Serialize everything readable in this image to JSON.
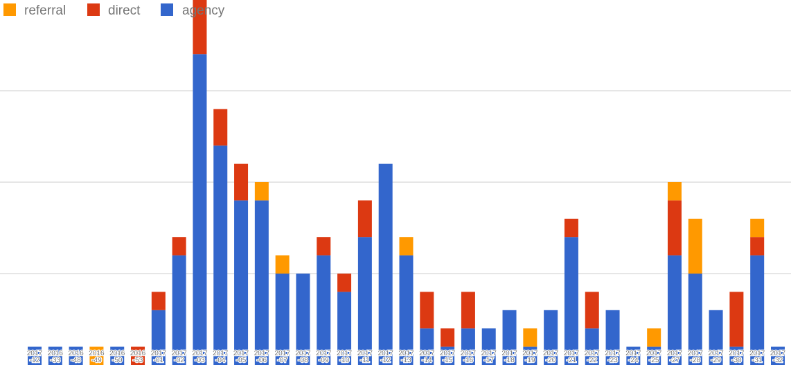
{
  "chart_data": {
    "type": "bar",
    "stacked": true,
    "title": "",
    "xlabel": "",
    "ylabel": "",
    "ylim": [
      0,
      20
    ],
    "grid": true,
    "legend_position": "top-left",
    "categories": [
      "2017-12",
      "2016-33",
      "2016-48",
      "2016-49",
      "2016-50",
      "2016-53",
      "2017-01",
      "2017-02",
      "2017-03",
      "2017-04",
      "2017-05",
      "2017-06",
      "2017-07",
      "2017-08",
      "2017-09",
      "2017-10",
      "2017-11",
      "2017-12",
      "2017-13",
      "2017-14",
      "2017-15",
      "2017-16",
      "2017-17",
      "2017-18",
      "2017-19",
      "2017-20",
      "2017-21",
      "2017-22",
      "2017-23",
      "2017-24",
      "2017-25",
      "2017-27",
      "2017-28",
      "2017-29",
      "2017-30",
      "2017-31",
      "2017-32"
    ],
    "series": [
      {
        "name": "agency",
        "color": "#3366cc",
        "values": [
          1,
          1,
          1,
          0,
          1,
          0,
          3,
          6,
          17,
          12,
          9,
          9,
          5,
          5,
          6,
          4,
          7,
          11,
          6,
          2,
          1,
          2,
          2,
          3,
          1,
          3,
          7,
          2,
          3,
          1,
          1,
          6,
          5,
          3,
          1,
          6,
          1
        ]
      },
      {
        "name": "direct",
        "color": "#dc3912",
        "values": [
          0,
          0,
          0,
          0,
          0,
          1,
          1,
          1,
          3,
          2,
          2,
          0,
          0,
          0,
          1,
          1,
          2,
          0,
          0,
          2,
          1,
          2,
          0,
          0,
          0,
          0,
          1,
          2,
          0,
          0,
          0,
          3,
          0,
          0,
          3,
          1,
          0
        ]
      },
      {
        "name": "referral",
        "color": "#ff9900",
        "values": [
          0,
          0,
          0,
          1,
          0,
          0,
          0,
          0,
          0,
          0,
          0,
          1,
          1,
          0,
          0,
          0,
          0,
          0,
          1,
          0,
          0,
          0,
          0,
          0,
          1,
          0,
          0,
          0,
          0,
          0,
          1,
          1,
          3,
          0,
          0,
          1,
          0
        ]
      }
    ],
    "legend": [
      "referral",
      "direct",
      "agency"
    ]
  }
}
